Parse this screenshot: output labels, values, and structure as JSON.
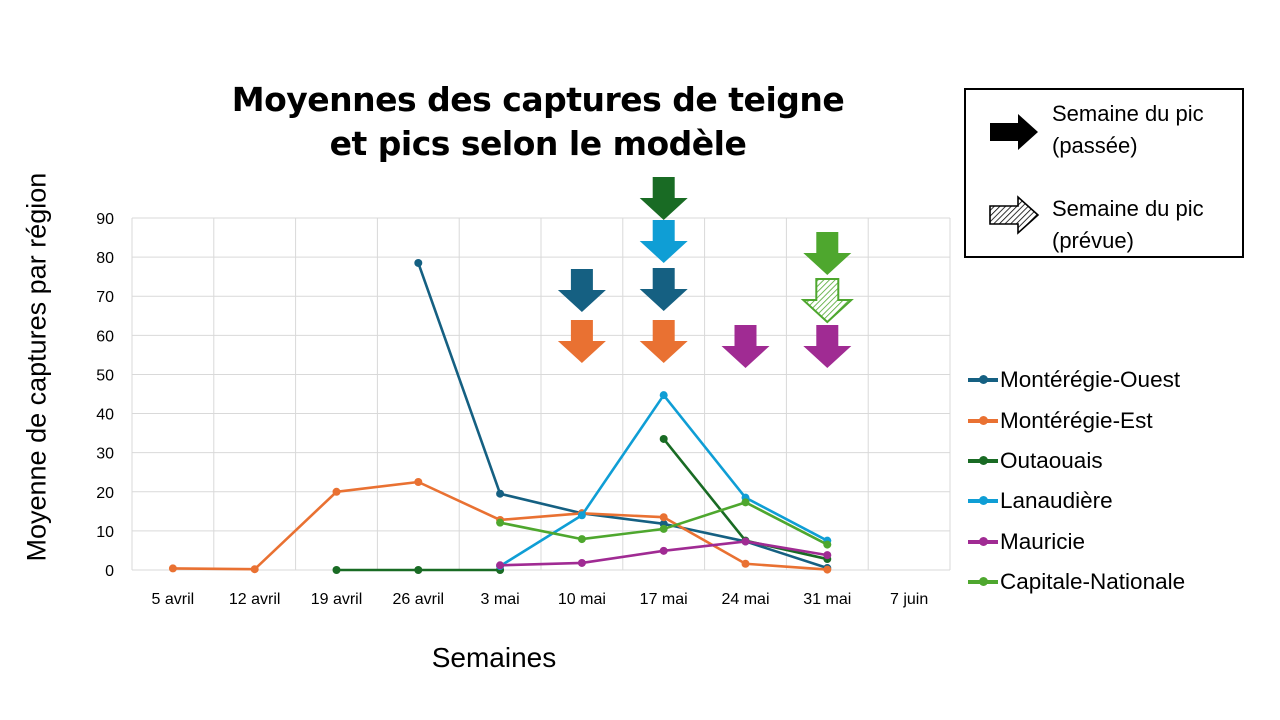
{
  "chart_data": {
    "type": "line",
    "title": "Moyennes des captures de teigne et pics selon le modèle",
    "title_lines": [
      "Moyennes des captures de teigne",
      "et pics selon le modèle"
    ],
    "xlabel": "Semaines",
    "ylabel": "Moyenne de captures par région",
    "ylim": [
      0,
      90
    ],
    "yticks": [
      "0",
      "10",
      "20",
      "30",
      "40",
      "50",
      "60",
      "70",
      "80",
      "90"
    ],
    "grid": true,
    "legend_position": "right",
    "categories": [
      "5 avril",
      "12 avril",
      "19 avril",
      "26 avril",
      "3 mai",
      "10 mai",
      "17 mai",
      "24 mai",
      "31 mai",
      "7 juin"
    ],
    "series": [
      {
        "name": "Montérégie-Ouest",
        "color": "#156082",
        "values": [
          null,
          null,
          null,
          78.5,
          19.5,
          14.5,
          11.8,
          7.3,
          0.5,
          null
        ]
      },
      {
        "name": "Montérégie-Est",
        "color": "#E97132",
        "values": [
          0.4,
          0.2,
          20.0,
          22.5,
          12.8,
          14.5,
          13.5,
          1.6,
          0.1,
          null
        ]
      },
      {
        "name": "Outaouais",
        "color": "#196B24",
        "values": [
          null,
          null,
          0,
          0,
          0,
          null,
          33.5,
          7.5,
          2.8,
          null
        ],
        "segments": [
          [
            2,
            4
          ],
          [
            6,
            8
          ]
        ]
      },
      {
        "name": "Lanaudière",
        "color": "#0F9ED5",
        "values": [
          null,
          null,
          null,
          null,
          1.0,
          14.0,
          44.7,
          18.5,
          7.5,
          null
        ]
      },
      {
        "name": "Mauricie",
        "color": "#A02B93",
        "values": [
          null,
          null,
          null,
          null,
          1.2,
          1.8,
          4.9,
          7.3,
          3.8,
          null
        ]
      },
      {
        "name": "Capitale-Nationale",
        "color": "#4EA72E",
        "values": [
          null,
          null,
          null,
          null,
          12.1,
          7.9,
          10.5,
          17.3,
          6.5,
          null
        ]
      }
    ],
    "annotations": {
      "peak_arrows": [
        {
          "week": "10 mai",
          "series": "Montérégie-Ouest",
          "type": "passée",
          "color": "#156082"
        },
        {
          "week": "10 mai",
          "series": "Montérégie-Est",
          "type": "passée",
          "color": "#E97132"
        },
        {
          "week": "17 mai",
          "series": "Outaouais",
          "type": "passée",
          "color": "#196B24"
        },
        {
          "week": "17 mai",
          "series": "Lanaudière",
          "type": "passée",
          "color": "#0F9ED5"
        },
        {
          "week": "17 mai",
          "series": "Montérégie-Ouest",
          "type": "passée",
          "color": "#156082"
        },
        {
          "week": "17 mai",
          "series": "Montérégie-Est",
          "type": "passée",
          "color": "#E97132"
        },
        {
          "week": "24 mai",
          "series": "Mauricie",
          "type": "passée",
          "color": "#A02B93"
        },
        {
          "week": "31 mai",
          "series": "Capitale-Nationale",
          "type": "passée",
          "color": "#4EA72E"
        },
        {
          "week": "31 mai",
          "series": "Capitale-Nationale",
          "type": "prévue",
          "color": "#4EA72E"
        },
        {
          "week": "31 mai",
          "series": "Mauricie",
          "type": "passée",
          "color": "#A02B93"
        }
      ]
    }
  },
  "arrow_legend": {
    "past_label_1": "Semaine du pic",
    "past_label_2": "(passée)",
    "forecast_label_1": "Semaine du pic",
    "forecast_label_2": "(prévue)"
  }
}
